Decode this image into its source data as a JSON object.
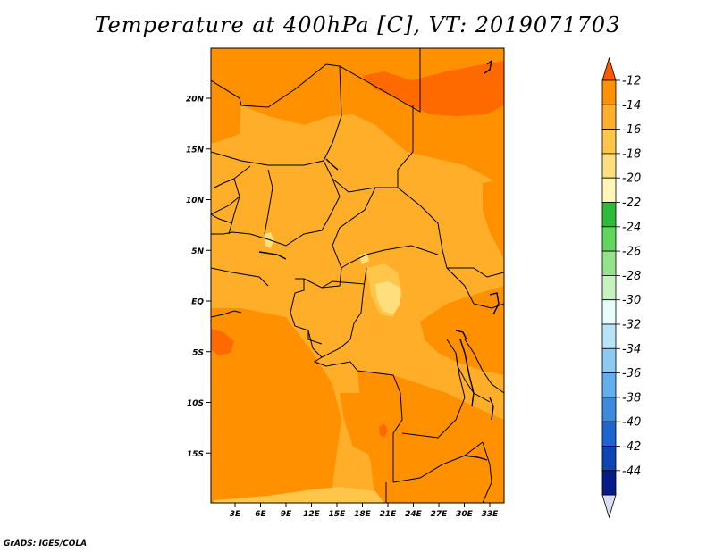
{
  "title": "Temperature at 400hPa [C], VT: 2019071703",
  "credit": "GrADS: IGES/COLA",
  "lat_labels": [
    "20N",
    "15N",
    "10N",
    "5N",
    "EQ",
    "5S",
    "10S",
    "15S"
  ],
  "lon_labels": [
    "3E",
    "6E",
    "9E",
    "12E",
    "15E",
    "18E",
    "21E",
    "24E",
    "27E",
    "30E",
    "33E"
  ],
  "colorbar": {
    "labels": [
      "-12",
      "-14",
      "-16",
      "-18",
      "-20",
      "-22",
      "-24",
      "-26",
      "-28",
      "-30",
      "-32",
      "-34",
      "-36",
      "-38",
      "-40",
      "-42",
      "-44"
    ],
    "colors": [
      "#ff5a00",
      "#ff9000",
      "#ffae2a",
      "#ffc64a",
      "#fde07d",
      "#fff6b8",
      "#2cbc3a",
      "#62d65c",
      "#95e48c",
      "#c6f2bd",
      "#e8fcfc",
      "#b8e4f8",
      "#8ccaf2",
      "#64aeec",
      "#3c8ae0",
      "#1c66d2",
      "#0d44b6",
      "#061c88",
      "#dcdcf6"
    ]
  },
  "field_colors": {
    "minus14": "#ff9000",
    "minus16": "#ffae2a",
    "minus18": "#ffc64a",
    "minus20": "#fde07d",
    "minus12": "#ff6a00"
  }
}
